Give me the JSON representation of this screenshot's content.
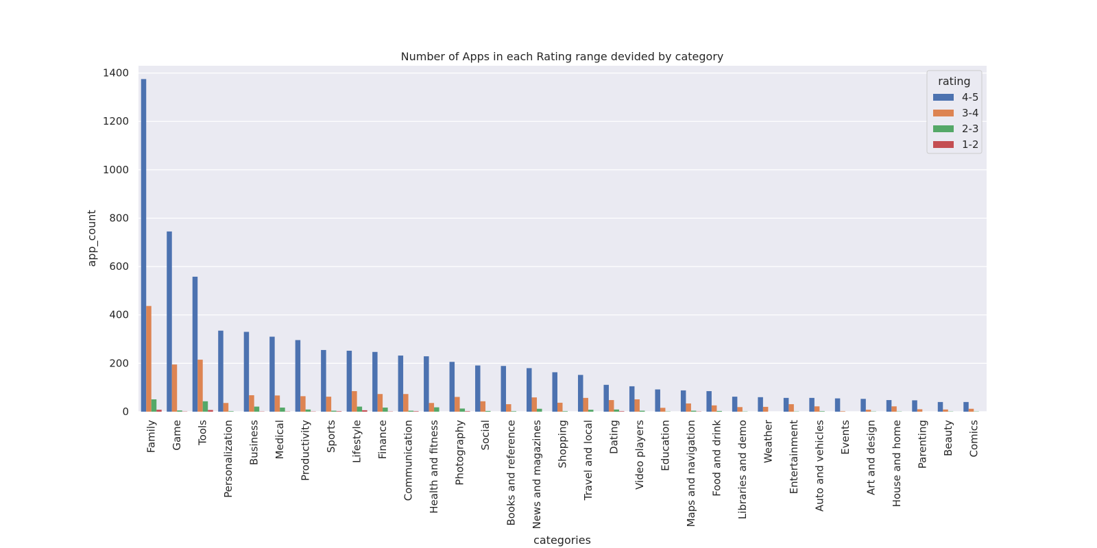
{
  "chart_data": {
    "type": "bar",
    "title": "Number of Apps in each Rating range devided by category",
    "xlabel": "categories",
    "ylabel": "app_count",
    "ylim": [
      0,
      1430
    ],
    "yticks": [
      0,
      200,
      400,
      600,
      800,
      1000,
      1200,
      1400
    ],
    "grid": true,
    "legend_title": "rating",
    "legend_position": "top-right",
    "categories": [
      "Family",
      "Game",
      "Tools",
      "Personalization",
      "Business",
      "Medical",
      "Productivity",
      "Sports",
      "Lifestyle",
      "Finance",
      "Communication",
      "Health and fitness",
      "Photography",
      "Social",
      "Books and reference",
      "News and magazines",
      "Shopping",
      "Travel and local",
      "Dating",
      "Video players",
      "Education",
      "Maps and navigation",
      "Food and drink",
      "Libraries and demo",
      "Weather",
      "Entertainment",
      "Auto and vehicles",
      "Events",
      "Art and design",
      "House and home",
      "Parenting",
      "Beauty",
      "Comics"
    ],
    "series": [
      {
        "name": "4-5",
        "color": "#4c72b0",
        "values": [
          1375,
          745,
          558,
          335,
          330,
          310,
          296,
          255,
          252,
          247,
          232,
          229,
          206,
          191,
          189,
          180,
          163,
          152,
          111,
          105,
          92,
          88,
          85,
          62,
          60,
          57,
          57,
          55,
          53,
          48,
          47,
          40,
          40
        ]
      },
      {
        "name": "3-4",
        "color": "#dd8452",
        "values": [
          437,
          195,
          215,
          36,
          68,
          67,
          64,
          62,
          85,
          73,
          73,
          36,
          61,
          43,
          31,
          59,
          37,
          57,
          48,
          51,
          16,
          34,
          26,
          19,
          20,
          31,
          22,
          2,
          8,
          22,
          10,
          9,
          12
        ]
      },
      {
        "name": "2-3",
        "color": "#55a868",
        "values": [
          51,
          5,
          43,
          2,
          21,
          17,
          9,
          4,
          21,
          17,
          4,
          18,
          13,
          3,
          2,
          12,
          2,
          8,
          9,
          4,
          1,
          4,
          3,
          1,
          0,
          1,
          2,
          0,
          1,
          1,
          0,
          1,
          1
        ]
      },
      {
        "name": "1-2",
        "color": "#c44e52",
        "values": [
          8,
          1,
          7,
          0,
          1,
          1,
          1,
          2,
          6,
          1,
          2,
          0,
          2,
          0,
          0,
          0,
          0,
          0,
          2,
          0,
          0,
          1,
          0,
          0,
          0,
          0,
          0,
          0,
          0,
          0,
          0,
          0,
          0
        ]
      }
    ]
  }
}
